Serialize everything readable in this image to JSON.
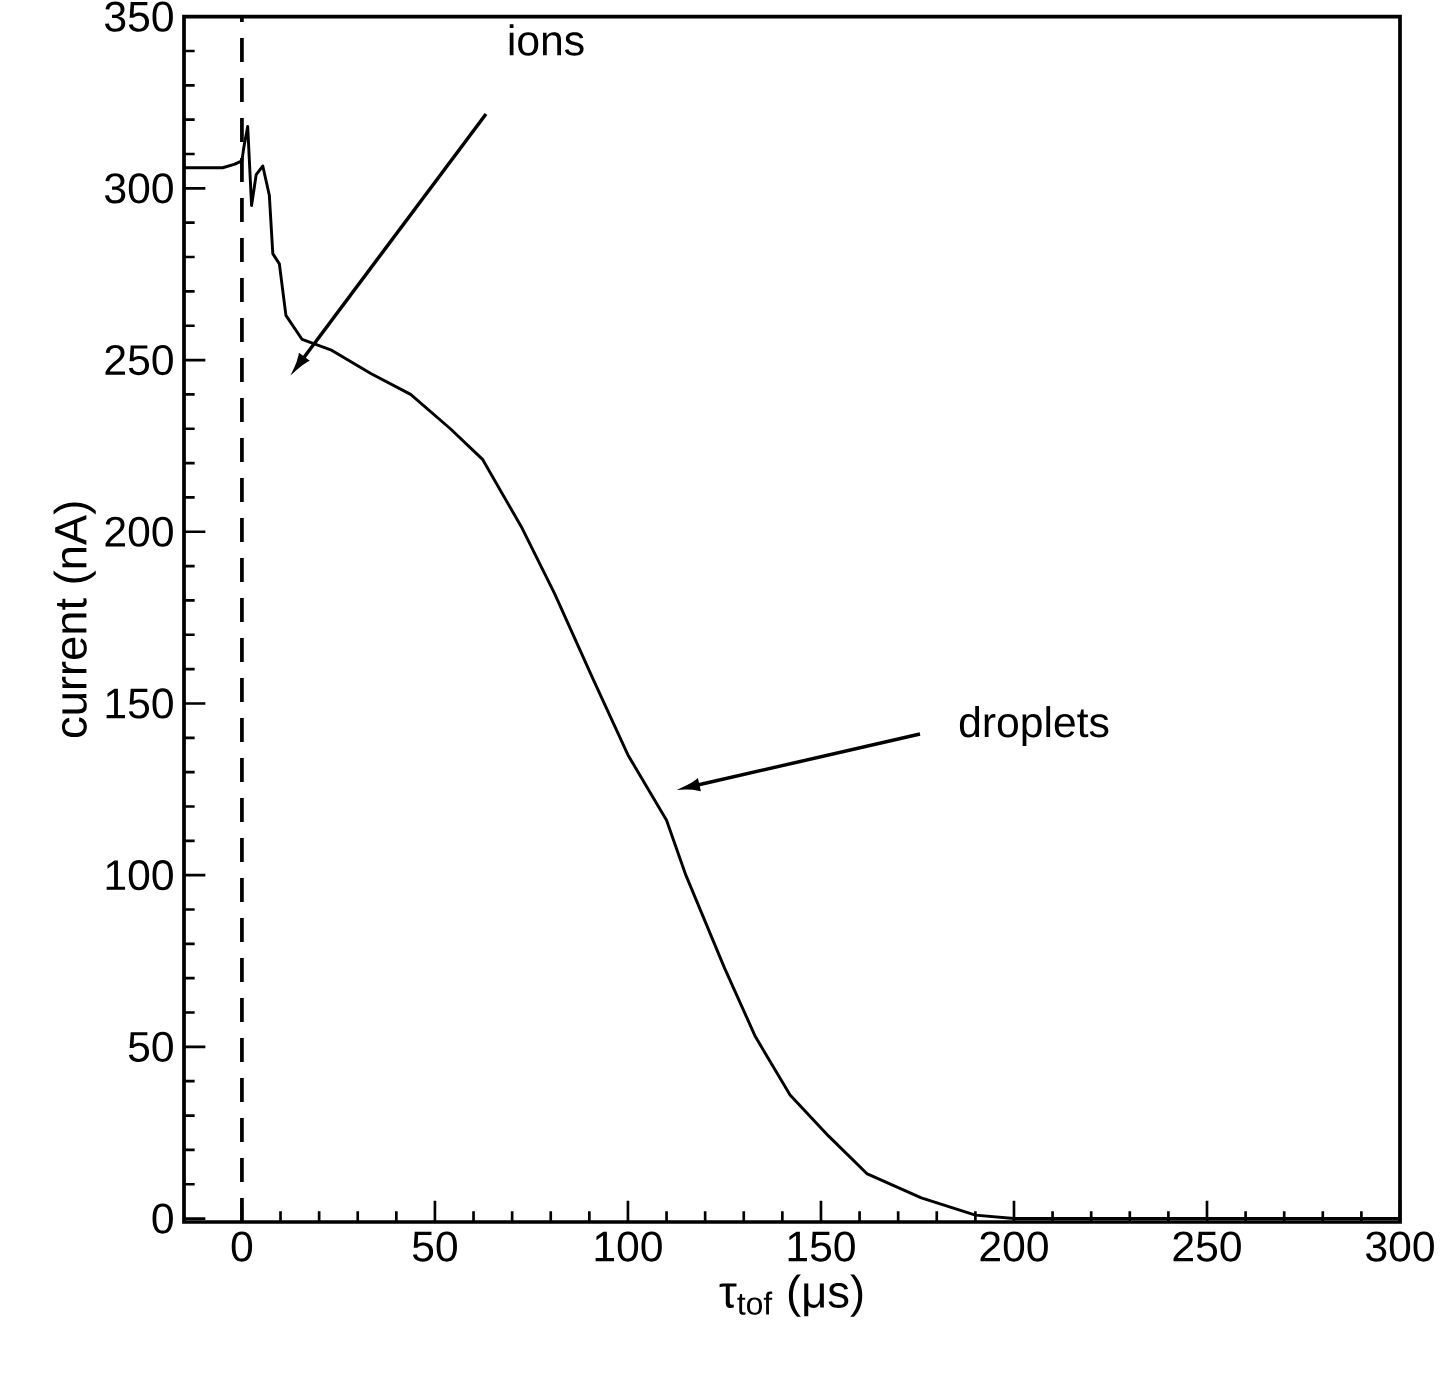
{
  "chart_data": {
    "type": "line",
    "xlabel": "τ$_{tof}$ (μs)",
    "ylabel": "current (nA)",
    "series": [
      {
        "color": "#000000",
        "x": [
          -15,
          -5,
          -2,
          0,
          0.5,
          1.5,
          2.5,
          3.7,
          5.4,
          7.1,
          8,
          9.7,
          11.4,
          15.6,
          23,
          33.5,
          43.7,
          54,
          62.4,
          72.6,
          81,
          91,
          100,
          110,
          115,
          125,
          133,
          142,
          152,
          162,
          176,
          190,
          200,
          250,
          300
        ],
        "values": [
          306,
          306,
          307,
          308,
          312,
          318,
          295,
          304,
          306.5,
          298,
          281,
          278,
          263,
          256,
          253,
          246,
          240,
          230,
          221,
          201,
          182,
          157,
          135,
          116,
          100,
          73,
          53,
          36,
          24,
          13,
          6,
          1,
          0,
          0,
          0
        ]
      }
    ],
    "xlim": [
      -15,
      300
    ],
    "ylim": [
      -1,
      350
    ],
    "xticks": [
      0,
      50,
      100,
      150,
      200,
      250,
      300
    ],
    "yticks": [
      0,
      50,
      100,
      150,
      200,
      250,
      300,
      350
    ],
    "ref_lines": [
      {
        "axis": "x",
        "value": 0,
        "color": "#000000",
        "line_style": "dashed"
      }
    ],
    "annotations": [
      "ions",
      "droplets"
    ]
  }
}
